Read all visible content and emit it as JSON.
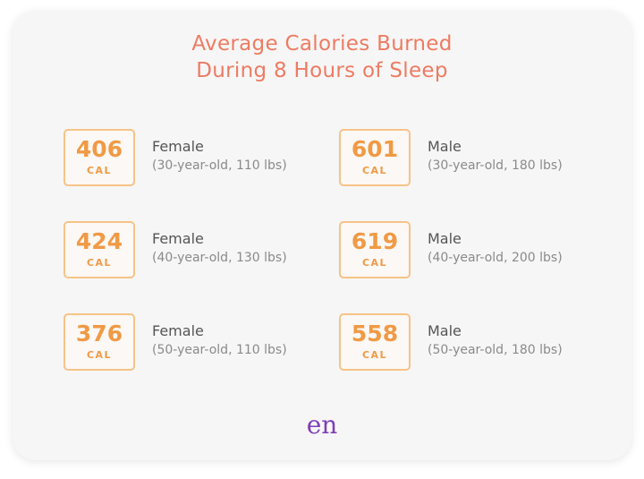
{
  "title": [
    "Average Calories Burned",
    "During 8 Hours of Sleep"
  ],
  "items": [
    {
      "value": 406,
      "unit": "CAL",
      "label": "Female",
      "detail": "(30-year-old, 110 lbs)"
    },
    {
      "value": 601,
      "unit": "CAL",
      "label": "Male",
      "detail": "(30-year-old, 180 lbs)"
    },
    {
      "value": 424,
      "unit": "CAL",
      "label": "Female",
      "detail": "(40-year-old, 130 lbs)"
    },
    {
      "value": 619,
      "unit": "CAL",
      "label": "Male",
      "detail": "(40-year-old, 200 lbs)"
    },
    {
      "value": 376,
      "unit": "CAL",
      "label": "Female",
      "detail": "(50-year-old, 110 lbs)"
    },
    {
      "value": 558,
      "unit": "CAL",
      "label": "Male",
      "detail": "(50-year-old, 180 lbs)"
    }
  ],
  "logo": "en"
}
